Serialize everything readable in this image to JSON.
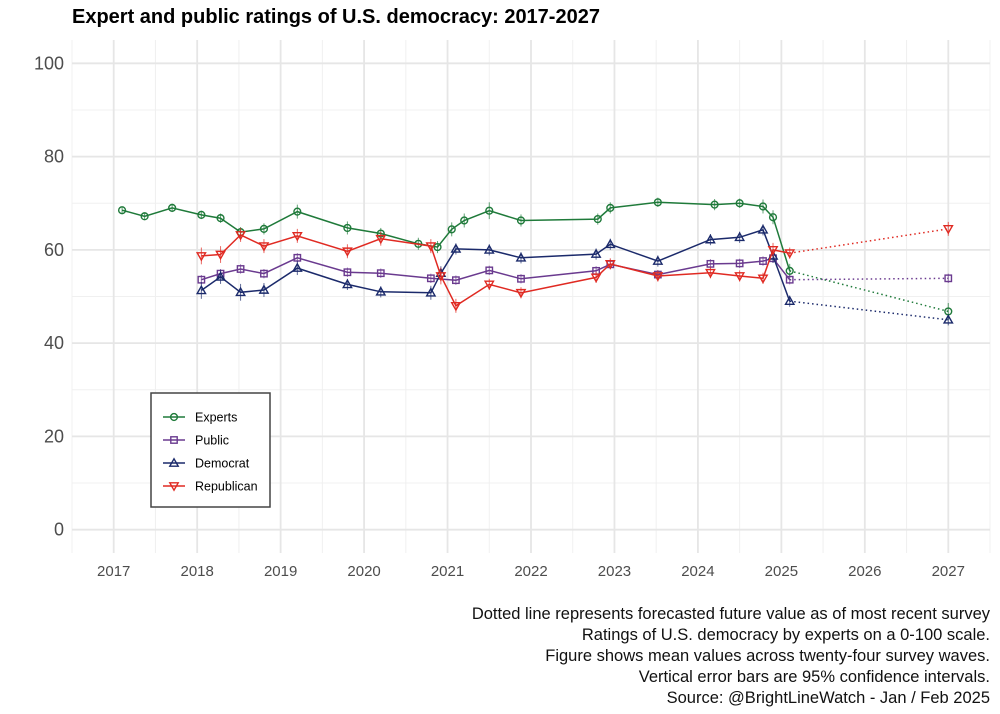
{
  "chart_data": {
    "type": "line",
    "title": "Expert and public ratings of U.S. democracy: 2017-2027",
    "xlabel": "",
    "ylabel": "",
    "xlim": [
      2016.5,
      2027.5
    ],
    "ylim": [
      -5,
      105
    ],
    "x_ticks": [
      "2017",
      "2018",
      "2019",
      "2020",
      "2021",
      "2022",
      "2023",
      "2024",
      "2025",
      "2026",
      "2027"
    ],
    "y_ticks": [
      "0",
      "20",
      "40",
      "60",
      "80",
      "100"
    ],
    "legend": {
      "placement": "bottom-left",
      "entries": [
        "Experts",
        "Public",
        "Democrat",
        "Republican"
      ]
    },
    "series": [
      {
        "name": "Experts",
        "color": "#1f7a3a",
        "marker": "circle",
        "x": [
          2017.1,
          2017.37,
          2017.7,
          2018.05,
          2018.28,
          2018.52,
          2018.8,
          2019.2,
          2019.8,
          2020.2,
          2020.65,
          2020.88,
          2021.05,
          2021.2,
          2021.5,
          2021.88,
          2022.8,
          2022.95,
          2023.52,
          2024.2,
          2024.5,
          2024.78,
          2024.9,
          2025.1
        ],
        "values": [
          68.5,
          67.2,
          69.0,
          67.5,
          66.8,
          63.8,
          64.5,
          68.2,
          64.7,
          63.5,
          61.3,
          60.6,
          64.4,
          66.3,
          68.4,
          66.3,
          66.6,
          69.0,
          70.2,
          69.7,
          70.0,
          69.3,
          67.0,
          55.5
        ],
        "error": [
          0.7,
          0.8,
          0.9,
          0.9,
          1.0,
          1.1,
          1.2,
          1.5,
          1.4,
          1.2,
          1.3,
          1.3,
          1.5,
          1.5,
          1.8,
          1.3,
          1.2,
          1.2,
          1.0,
          1.2,
          1.0,
          1.5,
          1.5,
          1.5
        ],
        "forecast": {
          "x": 2027,
          "value": 46.8,
          "error": 1.8
        }
      },
      {
        "name": "Public",
        "color": "#6a3a8f",
        "marker": "square",
        "x": [
          2018.05,
          2018.28,
          2018.52,
          2018.8,
          2019.2,
          2019.8,
          2020.2,
          2020.8,
          2021.1,
          2021.5,
          2021.88,
          2022.78,
          2022.95,
          2023.52,
          2024.15,
          2024.5,
          2024.78,
          2024.9,
          2025.1
        ],
        "values": [
          53.6,
          54.9,
          55.9,
          54.9,
          58.3,
          55.2,
          55.0,
          53.9,
          53.5,
          55.6,
          53.8,
          55.5,
          56.9,
          54.7,
          57.0,
          57.1,
          57.6,
          58.2,
          53.6
        ],
        "error": [
          1.0,
          1.0,
          1.0,
          1.0,
          1.0,
          1.0,
          1.0,
          1.0,
          1.0,
          1.0,
          1.0,
          1.0,
          1.0,
          1.0,
          1.0,
          1.0,
          1.0,
          1.0,
          1.0
        ],
        "forecast": {
          "x": 2027,
          "value": 53.9,
          "error": 1.0
        }
      },
      {
        "name": "Democrat",
        "color": "#1b2a6b",
        "marker": "triangle-up",
        "x": [
          2018.05,
          2018.28,
          2018.52,
          2018.8,
          2019.2,
          2019.8,
          2020.2,
          2020.8,
          2020.92,
          2021.1,
          2021.5,
          2021.88,
          2022.78,
          2022.95,
          2023.52,
          2024.15,
          2024.5,
          2024.78,
          2024.9,
          2025.1
        ],
        "values": [
          51.3,
          54.2,
          50.9,
          51.4,
          56.1,
          52.6,
          51.0,
          50.8,
          55.0,
          60.2,
          60.0,
          58.3,
          59.1,
          61.2,
          57.6,
          62.2,
          62.7,
          64.3,
          58.7,
          49.0
        ],
        "error": [
          1.8,
          1.5,
          1.8,
          1.5,
          1.5,
          1.2,
          1.2,
          1.5,
          1.5,
          1.2,
          1.2,
          1.2,
          1.2,
          1.2,
          1.2,
          1.2,
          1.2,
          1.2,
          1.5,
          1.2
        ],
        "forecast": {
          "x": 2027,
          "value": 45.0,
          "error": 1.2
        }
      },
      {
        "name": "Republican",
        "color": "#e02a22",
        "marker": "triangle-down",
        "x": [
          2018.05,
          2018.28,
          2018.52,
          2018.8,
          2019.2,
          2019.8,
          2020.2,
          2020.8,
          2020.92,
          2021.1,
          2021.5,
          2021.88,
          2022.78,
          2022.95,
          2023.52,
          2024.15,
          2024.5,
          2024.78,
          2024.9,
          2025.1
        ],
        "values": [
          58.7,
          59.0,
          63.2,
          60.8,
          63.0,
          59.7,
          62.4,
          60.8,
          54.4,
          48.0,
          52.6,
          50.8,
          54.1,
          57.0,
          54.4,
          55.1,
          54.4,
          53.9,
          60.0,
          59.3
        ],
        "error": [
          1.8,
          1.8,
          1.5,
          1.5,
          1.5,
          1.5,
          1.5,
          1.5,
          1.8,
          1.5,
          1.2,
          1.2,
          1.2,
          1.2,
          1.2,
          1.2,
          1.2,
          1.2,
          1.5,
          1.2
        ],
        "forecast": {
          "x": 2027,
          "value": 64.5,
          "error": 1.5
        }
      }
    ]
  },
  "caption": [
    "Dotted line represents forecasted future value as of most recent survey ",
    "Ratings of U.S. democracy by experts on a 0-100 scale.",
    "Figure shows mean values across twenty-four survey waves. ",
    "Vertical error bars are 95% confidence intervals.",
    "Source: @BrightLineWatch - Jan / Feb 2025"
  ]
}
